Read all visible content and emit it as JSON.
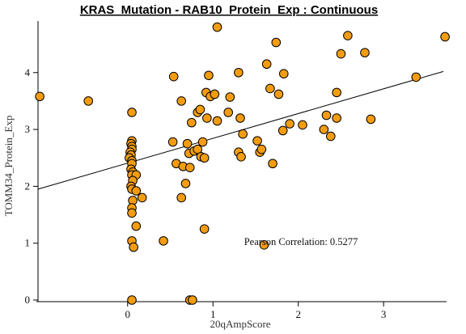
{
  "chart_data": {
    "type": "scatter",
    "title": "KRAS_Mutation - RAB10_Protein_Exp : Continuous",
    "xlabel": "20qAmpScore",
    "ylabel": "TOMM34_Protein_Exp",
    "xlim": [
      -1.05,
      3.7
    ],
    "ylim": [
      0,
      4.85
    ],
    "x_ticks": [
      0,
      1,
      2,
      3
    ],
    "x_tick_labels": [
      "0",
      "1",
      "2",
      "3"
    ],
    "y_ticks": [
      0,
      1,
      2,
      3,
      4
    ],
    "y_tick_labels": [
      "0",
      "1",
      "2",
      "3",
      "4"
    ],
    "grid": false,
    "annotation": "Pearson Correlation: 0.5277",
    "point_color": "#f39c12",
    "point_stroke": "#000000",
    "regression_line": {
      "x": [
        -1.05,
        3.7
      ],
      "y": [
        1.95,
        4.02
      ]
    },
    "points": [
      {
        "x": -1.03,
        "y": 3.58
      },
      {
        "x": -0.46,
        "y": 3.5
      },
      {
        "x": 0.05,
        "y": 3.3
      },
      {
        "x": 0.05,
        "y": 2.8
      },
      {
        "x": 0.04,
        "y": 2.75
      },
      {
        "x": 0.05,
        "y": 2.7
      },
      {
        "x": 0.05,
        "y": 2.65
      },
      {
        "x": 0.03,
        "y": 2.6
      },
      {
        "x": 0.04,
        "y": 2.55
      },
      {
        "x": 0.02,
        "y": 2.5
      },
      {
        "x": 0.05,
        "y": 2.45
      },
      {
        "x": 0.05,
        "y": 2.4
      },
      {
        "x": 0.04,
        "y": 2.3
      },
      {
        "x": 0.06,
        "y": 2.25
      },
      {
        "x": 0.05,
        "y": 2.2
      },
      {
        "x": 0.1,
        "y": 2.2
      },
      {
        "x": 0.06,
        "y": 2.1
      },
      {
        "x": 0.04,
        "y": 2.0
      },
      {
        "x": 0.05,
        "y": 1.95
      },
      {
        "x": 0.1,
        "y": 1.92
      },
      {
        "x": 0.17,
        "y": 1.8
      },
      {
        "x": 0.06,
        "y": 1.75
      },
      {
        "x": 0.05,
        "y": 1.62
      },
      {
        "x": 0.05,
        "y": 1.53
      },
      {
        "x": 0.1,
        "y": 1.3
      },
      {
        "x": 0.05,
        "y": 1.04
      },
      {
        "x": 0.07,
        "y": 0.93
      },
      {
        "x": 0.05,
        "y": 0.0
      },
      {
        "x": 0.42,
        "y": 1.04
      },
      {
        "x": 0.54,
        "y": 3.93
      },
      {
        "x": 0.53,
        "y": 2.78
      },
      {
        "x": 0.57,
        "y": 2.4
      },
      {
        "x": 0.63,
        "y": 3.5
      },
      {
        "x": 0.65,
        "y": 2.35
      },
      {
        "x": 0.63,
        "y": 1.8
      },
      {
        "x": 0.68,
        "y": 2.05
      },
      {
        "x": 0.7,
        "y": 2.75
      },
      {
        "x": 0.72,
        "y": 2.58
      },
      {
        "x": 0.73,
        "y": 2.33
      },
      {
        "x": 0.75,
        "y": 3.12
      },
      {
        "x": 0.78,
        "y": 2.62
      },
      {
        "x": 0.82,
        "y": 2.65
      },
      {
        "x": 0.82,
        "y": 3.3
      },
      {
        "x": 0.85,
        "y": 3.35
      },
      {
        "x": 0.88,
        "y": 2.78
      },
      {
        "x": 0.86,
        "y": 2.52
      },
      {
        "x": 0.9,
        "y": 2.5
      },
      {
        "x": 0.92,
        "y": 3.65
      },
      {
        "x": 0.95,
        "y": 3.95
      },
      {
        "x": 0.93,
        "y": 3.2
      },
      {
        "x": 0.97,
        "y": 3.58
      },
      {
        "x": 1.02,
        "y": 3.62
      },
      {
        "x": 1.05,
        "y": 3.15
      },
      {
        "x": 1.05,
        "y": 4.8
      },
      {
        "x": 1.18,
        "y": 3.3
      },
      {
        "x": 1.2,
        "y": 3.57
      },
      {
        "x": 1.3,
        "y": 4.0
      },
      {
        "x": 1.32,
        "y": 3.2
      },
      {
        "x": 1.3,
        "y": 2.6
      },
      {
        "x": 1.33,
        "y": 2.52
      },
      {
        "x": 1.35,
        "y": 2.92
      },
      {
        "x": 0.9,
        "y": 1.25
      },
      {
        "x": 0.73,
        "y": 0.0
      },
      {
        "x": 0.76,
        "y": 0.0
      },
      {
        "x": 1.52,
        "y": 2.8
      },
      {
        "x": 1.55,
        "y": 2.6
      },
      {
        "x": 1.57,
        "y": 2.65
      },
      {
        "x": 1.63,
        "y": 4.15
      },
      {
        "x": 1.67,
        "y": 3.72
      },
      {
        "x": 1.7,
        "y": 2.4
      },
      {
        "x": 1.74,
        "y": 4.53
      },
      {
        "x": 1.77,
        "y": 3.62
      },
      {
        "x": 1.82,
        "y": 2.98
      },
      {
        "x": 1.83,
        "y": 3.98
      },
      {
        "x": 1.9,
        "y": 3.1
      },
      {
        "x": 2.05,
        "y": 3.08
      },
      {
        "x": 2.3,
        "y": 3.0
      },
      {
        "x": 2.33,
        "y": 3.25
      },
      {
        "x": 2.38,
        "y": 2.88
      },
      {
        "x": 2.45,
        "y": 3.65
      },
      {
        "x": 2.45,
        "y": 3.2
      },
      {
        "x": 2.5,
        "y": 4.33
      },
      {
        "x": 2.58,
        "y": 4.65
      },
      {
        "x": 2.78,
        "y": 4.35
      },
      {
        "x": 2.85,
        "y": 3.18
      },
      {
        "x": 3.38,
        "y": 3.92
      },
      {
        "x": 3.72,
        "y": 4.63
      },
      {
        "x": 1.6,
        "y": 0.97
      }
    ]
  }
}
